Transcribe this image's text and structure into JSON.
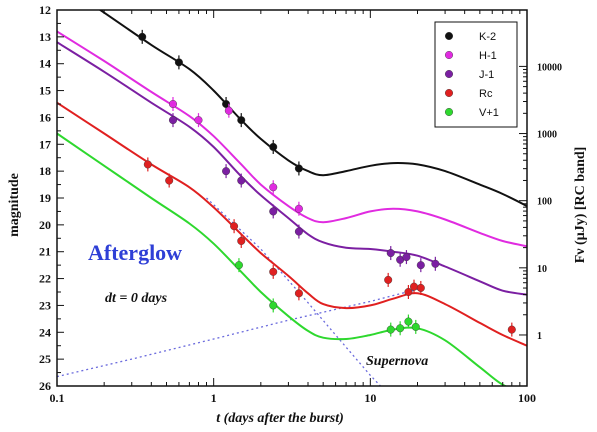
{
  "chart_data": {
    "type": "line",
    "x_scale": "log",
    "y_inverted": true,
    "xlim": [
      0.1,
      100
    ],
    "ylim": [
      12,
      26
    ],
    "xlabel": "t (days after the burst)",
    "ylabel": "magnitude",
    "y2label": "Fν (µJy) [RC band]",
    "x_ticks": [
      {
        "v": 0.1,
        "label": "0.1"
      },
      {
        "v": 1,
        "label": "1"
      },
      {
        "v": 10,
        "label": "10"
      },
      {
        "v": 100,
        "label": "100"
      }
    ],
    "y_ticks": [
      {
        "v": 12,
        "label": "12"
      },
      {
        "v": 13,
        "label": "13"
      },
      {
        "v": 14,
        "label": "14"
      },
      {
        "v": 15,
        "label": "15"
      },
      {
        "v": 16,
        "label": "16"
      },
      {
        "v": 17,
        "label": "17"
      },
      {
        "v": 18,
        "label": "18"
      },
      {
        "v": 19,
        "label": "19"
      },
      {
        "v": 20,
        "label": "20"
      },
      {
        "v": 21,
        "label": "21"
      },
      {
        "v": 22,
        "label": "22"
      },
      {
        "v": 23,
        "label": "23"
      },
      {
        "v": 24,
        "label": "24"
      },
      {
        "v": 25,
        "label": "25"
      },
      {
        "v": 26,
        "label": "26"
      }
    ],
    "y2_ticks": [
      {
        "mag": 14.1,
        "label": "10000"
      },
      {
        "mag": 16.6,
        "label": "1000"
      },
      {
        "mag": 19.1,
        "label": "100"
      },
      {
        "mag": 21.6,
        "label": "10"
      },
      {
        "mag": 24.1,
        "label": "1"
      }
    ],
    "legend_position": "top-right",
    "series": [
      {
        "name": "K-2",
        "color": "#111111",
        "points": [
          [
            0.35,
            13.0
          ],
          [
            0.6,
            13.95
          ],
          [
            1.2,
            15.5
          ],
          [
            1.5,
            16.1
          ],
          [
            2.4,
            17.1
          ],
          [
            3.5,
            17.9
          ]
        ],
        "curve": [
          [
            0.1,
            10.9
          ],
          [
            0.2,
            12.1
          ],
          [
            0.4,
            13.3
          ],
          [
            0.7,
            14.2
          ],
          [
            1.0,
            15.0
          ],
          [
            1.5,
            16.1
          ],
          [
            2.0,
            16.8
          ],
          [
            3.0,
            17.6
          ],
          [
            4.0,
            18.0
          ],
          [
            5.0,
            18.15
          ],
          [
            7.0,
            18.0
          ],
          [
            10.0,
            17.8
          ],
          [
            14.0,
            17.7
          ],
          [
            20.0,
            17.75
          ],
          [
            30.0,
            18.0
          ],
          [
            50.0,
            18.5
          ],
          [
            70.0,
            18.85
          ],
          [
            100.0,
            19.3
          ]
        ]
      },
      {
        "name": "H-1",
        "color": "#e02be0",
        "points": [
          [
            0.55,
            15.5
          ],
          [
            0.8,
            16.1
          ],
          [
            1.25,
            15.75
          ],
          [
            2.4,
            18.6
          ],
          [
            3.5,
            19.4
          ]
        ],
        "curve": [
          [
            0.1,
            12.8
          ],
          [
            0.2,
            13.9
          ],
          [
            0.4,
            15.05
          ],
          [
            0.7,
            15.95
          ],
          [
            1.0,
            16.7
          ],
          [
            1.5,
            17.75
          ],
          [
            2.0,
            18.5
          ],
          [
            3.0,
            19.3
          ],
          [
            4.0,
            19.75
          ],
          [
            5.0,
            19.9
          ],
          [
            7.0,
            19.75
          ],
          [
            10.0,
            19.5
          ],
          [
            14.0,
            19.4
          ],
          [
            20.0,
            19.5
          ],
          [
            30.0,
            19.8
          ],
          [
            50.0,
            20.3
          ],
          [
            70.0,
            20.6
          ],
          [
            100.0,
            20.8
          ]
        ]
      },
      {
        "name": "J-1",
        "color": "#7b1fa2",
        "points": [
          [
            0.55,
            16.1
          ],
          [
            1.2,
            18.0
          ],
          [
            1.5,
            18.35
          ],
          [
            2.4,
            19.5
          ],
          [
            3.5,
            20.25
          ],
          [
            13.5,
            21.05
          ],
          [
            15.5,
            21.3
          ],
          [
            17.0,
            21.2
          ],
          [
            21.0,
            21.5
          ],
          [
            26.0,
            21.45
          ]
        ],
        "curve": [
          [
            0.1,
            13.2
          ],
          [
            0.2,
            14.3
          ],
          [
            0.4,
            15.45
          ],
          [
            0.7,
            16.35
          ],
          [
            1.0,
            17.1
          ],
          [
            1.5,
            18.2
          ],
          [
            2.0,
            18.9
          ],
          [
            3.0,
            19.75
          ],
          [
            4.0,
            20.35
          ],
          [
            5.0,
            20.65
          ],
          [
            7.0,
            20.85
          ],
          [
            10.0,
            20.9
          ],
          [
            14.0,
            21.0
          ],
          [
            20.0,
            21.15
          ],
          [
            30.0,
            21.55
          ],
          [
            50.0,
            22.1
          ],
          [
            70.0,
            22.45
          ],
          [
            100.0,
            22.6
          ]
        ]
      },
      {
        "name": "Rc",
        "color": "#e02020",
        "points": [
          [
            0.38,
            17.75
          ],
          [
            0.52,
            18.35
          ],
          [
            1.35,
            20.05
          ],
          [
            1.5,
            20.6
          ],
          [
            2.4,
            21.75
          ],
          [
            3.5,
            22.55
          ],
          [
            13.0,
            22.05
          ],
          [
            17.5,
            22.5
          ],
          [
            19.0,
            22.3
          ],
          [
            21.0,
            22.35
          ],
          [
            80.0,
            23.9
          ]
        ],
        "curve": [
          [
            0.1,
            15.45
          ],
          [
            0.2,
            16.6
          ],
          [
            0.4,
            17.75
          ],
          [
            0.7,
            18.6
          ],
          [
            1.0,
            19.35
          ],
          [
            1.5,
            20.35
          ],
          [
            2.0,
            21.05
          ],
          [
            3.0,
            21.9
          ],
          [
            4.0,
            22.55
          ],
          [
            5.0,
            22.95
          ],
          [
            7.0,
            23.1
          ],
          [
            10.0,
            23.0
          ],
          [
            14.0,
            22.75
          ],
          [
            20.0,
            22.55
          ],
          [
            30.0,
            22.95
          ],
          [
            50.0,
            23.65
          ],
          [
            70.0,
            24.1
          ],
          [
            100.0,
            24.5
          ]
        ]
      },
      {
        "name": "V+1",
        "color": "#2ed82e",
        "points": [
          [
            1.45,
            21.5
          ],
          [
            2.4,
            23.0
          ],
          [
            13.5,
            23.9
          ],
          [
            15.5,
            23.85
          ],
          [
            17.5,
            23.6
          ],
          [
            19.5,
            23.8
          ]
        ],
        "curve": [
          [
            0.1,
            16.6
          ],
          [
            0.2,
            17.8
          ],
          [
            0.4,
            19.0
          ],
          [
            0.7,
            19.95
          ],
          [
            1.0,
            20.7
          ],
          [
            1.5,
            21.75
          ],
          [
            2.0,
            22.5
          ],
          [
            3.0,
            23.4
          ],
          [
            4.0,
            23.95
          ],
          [
            5.0,
            24.2
          ],
          [
            7.0,
            24.25
          ],
          [
            10.0,
            24.1
          ],
          [
            14.0,
            23.9
          ],
          [
            20.0,
            23.85
          ],
          [
            30.0,
            24.3
          ],
          [
            50.0,
            25.3
          ],
          [
            70.0,
            25.95
          ],
          [
            100.0,
            26.3
          ]
        ]
      }
    ],
    "dotted_lines": [
      {
        "name": "",
        "color": "#6b6bdd",
        "points": [
          [
            0.1,
            25.65
          ],
          [
            0.3,
            25.0
          ],
          [
            1.0,
            24.25
          ],
          [
            3.0,
            23.55
          ],
          [
            10.0,
            22.85
          ],
          [
            20.0,
            22.4
          ]
        ]
      },
      {
        "name": "",
        "color": "#6b6bdd",
        "points": [
          [
            0.9,
            19.0
          ],
          [
            2.0,
            20.9
          ],
          [
            4.0,
            22.9
          ],
          [
            6.0,
            24.1
          ],
          [
            10.0,
            25.6
          ],
          [
            13.0,
            26.3
          ]
        ]
      }
    ],
    "annotations": {
      "afterglow": "Afterglow",
      "dt": "dt = 0 days",
      "supernova": "Supernova"
    }
  }
}
